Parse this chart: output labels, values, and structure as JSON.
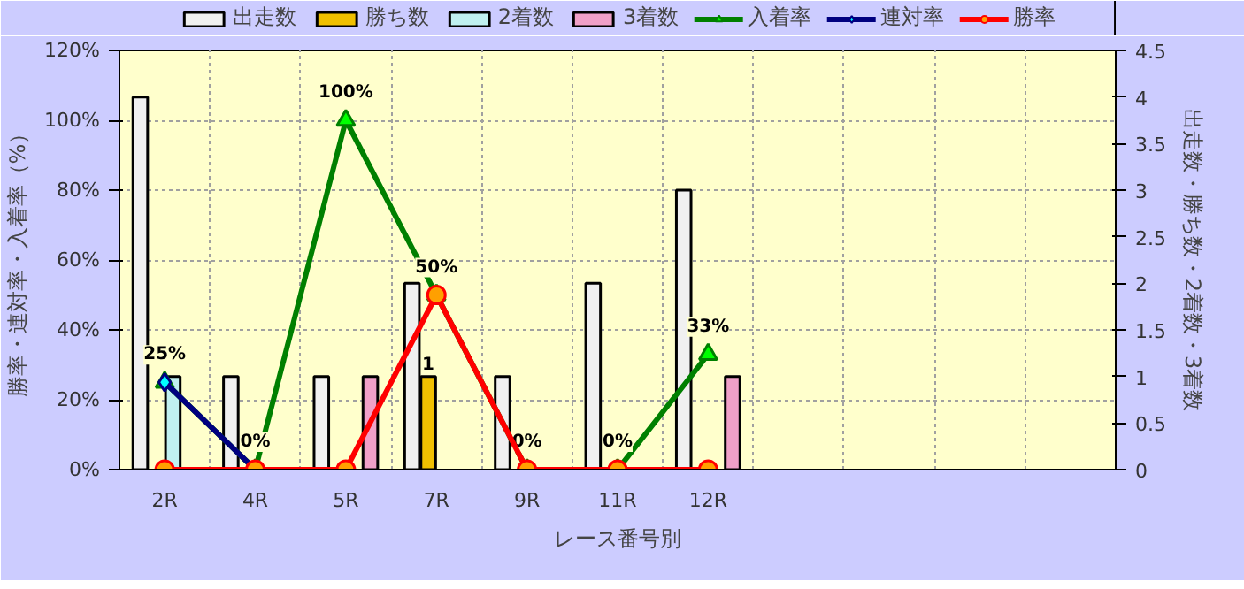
{
  "chart_data": {
    "type": "bar",
    "xlabel": "レース番号別",
    "ylabel": "勝率・連対率・入着率（%）",
    "y2label": "出走数・勝ち数・2着数・3着数",
    "categories": [
      "2R",
      "4R",
      "5R",
      "7R",
      "9R",
      "11R",
      "12R",
      null,
      null,
      null,
      null
    ],
    "series": [
      {
        "name": "出走数",
        "axis": "y2",
        "color": "#f0f0f0",
        "values": [
          4,
          1,
          1,
          2,
          1,
          2,
          3,
          null,
          null,
          null,
          null
        ]
      },
      {
        "name": "勝ち数",
        "axis": "y2",
        "color": "#f0c000",
        "values": [
          0,
          0,
          0,
          1,
          0,
          0,
          0,
          null,
          null,
          null,
          null
        ],
        "value_labels": [
          null,
          null,
          null,
          "1",
          null,
          null,
          null,
          null,
          null,
          null,
          null
        ]
      },
      {
        "name": "2着数",
        "axis": "y2",
        "color": "#c0f0f0",
        "values": [
          1,
          0,
          0,
          0,
          0,
          0,
          0,
          null,
          null,
          null,
          null
        ]
      },
      {
        "name": "3着数",
        "axis": "y2",
        "color": "#f0a0c8",
        "values": [
          0,
          0,
          1,
          0,
          0,
          0,
          1,
          null,
          null,
          null,
          null
        ]
      },
      {
        "name": "入着率",
        "type": "line",
        "color": "#008000",
        "marker": "triangle",
        "values": [
          25,
          0,
          100,
          50,
          0,
          0,
          33,
          null,
          null,
          null,
          null
        ],
        "value_labels": [
          "25%",
          "0%",
          "100%",
          "50%",
          "0%",
          "0%",
          "33%",
          null,
          null,
          null,
          null
        ]
      },
      {
        "name": "連対率",
        "type": "line",
        "color": "#000080",
        "marker": "diamond",
        "values": [
          25,
          0,
          null,
          null,
          null,
          null,
          null,
          null,
          null,
          null,
          null
        ]
      },
      {
        "name": "勝率",
        "type": "line",
        "color": "#ff0000",
        "marker": "circle",
        "values": [
          0,
          0,
          0,
          50,
          0,
          0,
          0,
          null,
          null,
          null,
          null
        ]
      }
    ],
    "ylim": [
      0,
      120
    ],
    "yticks": [
      {
        "value": 0,
        "label": "0%"
      },
      {
        "value": 20,
        "label": "20%"
      },
      {
        "value": 40,
        "label": "40%"
      },
      {
        "value": 60,
        "label": "60%"
      },
      {
        "value": 80,
        "label": "80%"
      },
      {
        "value": 100,
        "label": "100%"
      },
      {
        "value": 120,
        "label": "120%"
      }
    ],
    "y2lim": [
      0,
      4.5
    ],
    "y2ticks": [
      0,
      0.5,
      1,
      1.5,
      2,
      2.5,
      3,
      3.5,
      4,
      4.5
    ],
    "grid": true,
    "legend": "top",
    "line_style": "solid"
  }
}
